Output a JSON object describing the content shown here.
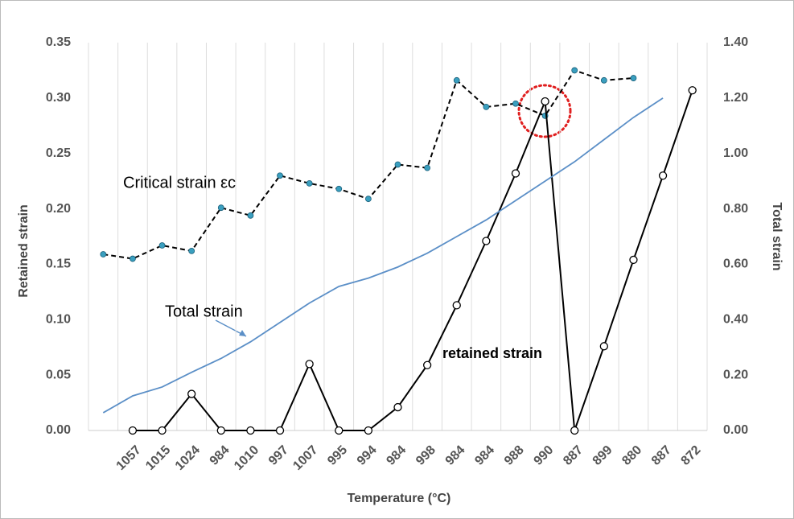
{
  "chart_data": {
    "type": "line",
    "x_label": "Temperature (°C)",
    "y_label": "Retained strain",
    "y2_label": "Total strain",
    "categories": [
      null,
      "1057",
      "1015",
      "1024",
      "984",
      "1010",
      "997",
      "1007",
      "995",
      "994",
      "984",
      "998",
      "984",
      "984",
      "988",
      "990",
      "887",
      "899",
      "880",
      "887",
      "872"
    ],
    "series": [
      {
        "name": "Critical strain εc",
        "color": "#000000",
        "marker_color": "#3a9fbf",
        "dashed": true,
        "axis": "y",
        "values": [
          0.159,
          0.155,
          0.167,
          0.162,
          0.201,
          0.194,
          0.23,
          0.223,
          0.218,
          0.209,
          0.24,
          0.237,
          0.316,
          0.292,
          0.295,
          0.284,
          0.325,
          0.316,
          0.318,
          null,
          null
        ]
      },
      {
        "name": "retained strain",
        "color": "#000000",
        "marker": "open-circle",
        "axis": "y",
        "values": [
          null,
          0,
          0,
          0.033,
          0,
          0,
          0,
          0.06,
          0,
          0,
          0.021,
          0.059,
          0.113,
          0.171,
          0.232,
          0.297,
          0,
          0.076,
          0.154,
          0.23,
          0.307
        ]
      },
      {
        "name": "Total strain",
        "color": "#5b8fc7",
        "axis": "y2",
        "values": [
          0.064,
          0.125,
          0.157,
          0.21,
          0.26,
          0.32,
          0.39,
          0.46,
          0.52,
          0.55,
          0.59,
          0.64,
          0.7,
          0.76,
          0.83,
          0.9,
          0.97,
          1.05,
          1.13,
          1.2,
          null
        ]
      }
    ],
    "ylim": [
      0,
      0.35
    ],
    "yticks": [
      {
        "value": 0,
        "label": "0.00"
      },
      {
        "value": 0.05,
        "label": "0.05"
      },
      {
        "value": 0.1,
        "label": "0.10"
      },
      {
        "value": 0.15,
        "label": "0.15"
      },
      {
        "value": 0.2,
        "label": "0.20"
      },
      {
        "value": 0.25,
        "label": "0.25"
      },
      {
        "value": 0.3,
        "label": "0.30"
      },
      {
        "value": 0.35,
        "label": "0.35"
      }
    ],
    "y2lim": [
      0,
      1.4
    ],
    "y2ticks": [
      {
        "value": 0,
        "label": "0.00"
      },
      {
        "value": 0.2,
        "label": "0.20"
      },
      {
        "value": 0.4,
        "label": "0.40"
      },
      {
        "value": 0.6,
        "label": "0.60"
      },
      {
        "value": 0.8,
        "label": "0.80"
      },
      {
        "value": 1,
        "label": "1.00"
      },
      {
        "value": 1.2,
        "label": "1.20"
      },
      {
        "value": 1.4,
        "label": "1.40"
      }
    ],
    "grid": "vertical"
  }
}
